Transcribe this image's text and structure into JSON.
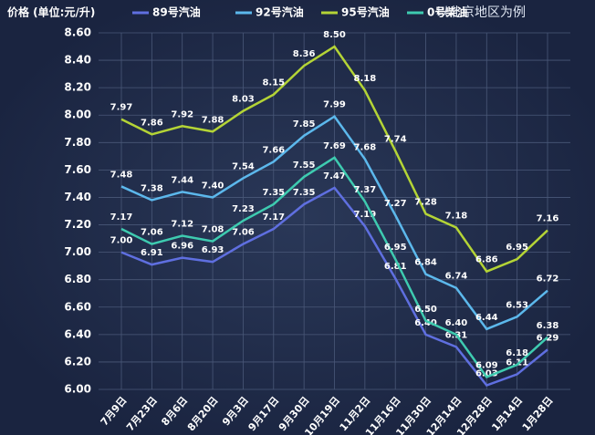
{
  "chart_data": {
    "type": "line",
    "title": "价格 (单位:元/升)",
    "note": "以北京地区为例",
    "categories": [
      "7月9日",
      "7月23日",
      "8月6日",
      "8月20日",
      "9月3日",
      "9月17日",
      "9月30日",
      "10月19日",
      "11月2日",
      "11月16日",
      "11月30日",
      "12月14日",
      "12月28日",
      "1月14日",
      "1月28日"
    ],
    "series": [
      {
        "name": "89号汽油",
        "color": "#5f6fe0",
        "values": [
          7.0,
          6.91,
          6.96,
          6.93,
          7.06,
          7.17,
          7.35,
          7.47,
          7.19,
          6.81,
          6.4,
          6.31,
          6.03,
          6.11,
          6.29
        ],
        "value_labels": [
          "7.00",
          "6.91",
          "6.96",
          "6.93",
          "7.06",
          "7.17",
          "7.35",
          "7.47",
          "7.19",
          "6.81",
          "6.40",
          "6.31",
          "6.03",
          "6.11",
          "6.29"
        ]
      },
      {
        "name": "92号汽油",
        "color": "#5cb8ec",
        "values": [
          7.48,
          7.38,
          7.44,
          7.4,
          7.54,
          7.66,
          7.85,
          7.99,
          7.68,
          7.27,
          6.84,
          6.74,
          6.44,
          6.53,
          6.72
        ],
        "value_labels": [
          "7.48",
          "7.38",
          "7.44",
          "7.40",
          "7.54",
          "7.66",
          "7.85",
          "7.99",
          "7.68",
          "7.27",
          "6.84",
          "6.74",
          "6.44",
          "6.53",
          "6.72"
        ]
      },
      {
        "name": "95号汽油",
        "color": "#b4d436",
        "values": [
          7.97,
          7.86,
          7.92,
          7.88,
          8.03,
          8.15,
          8.36,
          8.5,
          8.18,
          7.74,
          7.28,
          7.18,
          6.86,
          6.95,
          7.16
        ],
        "value_labels": [
          "7.97",
          "7.86",
          "7.92",
          "7.88",
          "8.03",
          "8.15",
          "8.36",
          "8.50",
          "8.18",
          "7.74",
          "7.28",
          "7.18",
          "6.86",
          "6.95",
          "7.16"
        ]
      },
      {
        "name": "0号柴油",
        "color": "#3ecbb0",
        "values": [
          7.17,
          7.06,
          7.12,
          7.08,
          7.23,
          7.35,
          7.55,
          7.69,
          7.37,
          6.95,
          6.5,
          6.4,
          6.09,
          6.18,
          6.38
        ],
        "value_labels": [
          "7.17",
          "7.06",
          "7.12",
          "7.08",
          "7.23",
          "7.35",
          "7.55",
          "7.69",
          "7.37",
          "6.95",
          "6.50",
          "6.40",
          "6.09",
          "6.18",
          "6.38"
        ]
      }
    ],
    "ylim": [
      6.0,
      8.6
    ],
    "yticks": [
      {
        "value": 6.0,
        "label": "6.00"
      },
      {
        "value": 6.2,
        "label": "6.20"
      },
      {
        "value": 6.4,
        "label": "6.40"
      },
      {
        "value": 6.6,
        "label": "6.60"
      },
      {
        "value": 6.8,
        "label": "6.80"
      },
      {
        "value": 7.0,
        "label": "7.00"
      },
      {
        "value": 7.2,
        "label": "7.20"
      },
      {
        "value": 7.4,
        "label": "7.40"
      },
      {
        "value": 7.6,
        "label": "7.60"
      },
      {
        "value": 7.8,
        "label": "7.80"
      },
      {
        "value": 8.0,
        "label": "8.00"
      },
      {
        "value": 8.2,
        "label": "8.20"
      },
      {
        "value": 8.4,
        "label": "8.40"
      },
      {
        "value": 8.6,
        "label": "8.60"
      }
    ],
    "grid": true
  }
}
